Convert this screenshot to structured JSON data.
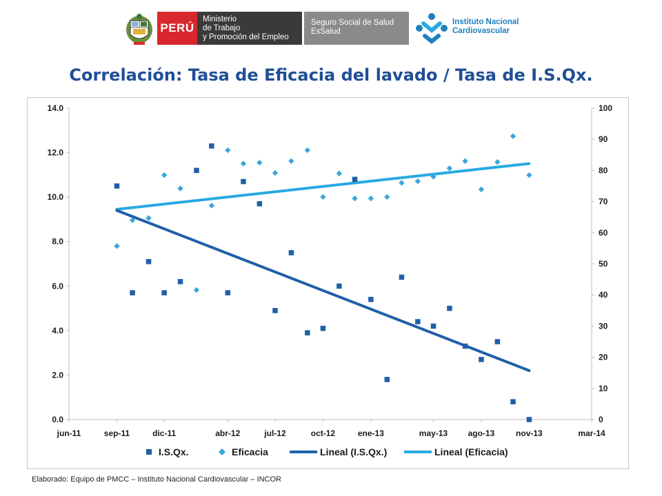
{
  "header": {
    "peru_label": "PERÚ",
    "mintra_lines": [
      "Ministerio",
      "de Trabajo",
      "y Promoción del Empleo"
    ],
    "essalud_lines": [
      "Seguro Social de Salud",
      "EsSalud"
    ],
    "incor_lines": [
      "Instituto Nacional",
      "Cardiovascular"
    ],
    "colors": {
      "peru_red": "#d9272e",
      "mintra_gray": "#3a3a3a",
      "essalud_gray": "#8a8a8a",
      "incor_blue": "#1f7fc0"
    }
  },
  "title": "Correlación: Tasa de Eficacia del lavado / Tasa de I.S.Qx.",
  "footer": "Elaborado: Equipo de PMCC – Instituto Nacional Cardiovascular – INCOR",
  "chart_data": {
    "type": "scatter",
    "x_ticks": [
      "jun-11",
      "sep-11",
      "dic-11",
      "abr-12",
      "jul-12",
      "oct-12",
      "ene-13",
      "may-13",
      "ago-13",
      "nov-13",
      "mar-14"
    ],
    "x_tick_dates": [
      "2011-06-01",
      "2011-09-01",
      "2011-12-01",
      "2012-04-01",
      "2012-07-01",
      "2012-10-01",
      "2013-01-01",
      "2013-05-01",
      "2013-08-01",
      "2013-11-01",
      "2014-03-01"
    ],
    "y_left": {
      "ticks": [
        "0.0",
        "2.0",
        "4.0",
        "6.0",
        "8.0",
        "10.0",
        "12.0",
        "14.0"
      ],
      "range": [
        0,
        14
      ]
    },
    "y_right": {
      "ticks": [
        "0",
        "10",
        "20",
        "30",
        "40",
        "50",
        "60",
        "70",
        "80",
        "90",
        "100"
      ],
      "range": [
        0,
        100
      ]
    },
    "grid": false,
    "legend_position": "bottom",
    "legend": [
      "I.S.Qx.",
      "Eficacia",
      "Lineal (I.S.Qx.)",
      "Lineal (Eficacia)"
    ],
    "colors": {
      "isqx": "#1f5fa8",
      "eficacia": "#3aa6dc",
      "trend_isqx": "#1f5fa8",
      "trend_eficacia": "#29aae1"
    },
    "series": [
      {
        "name": "I.S.Qx.",
        "axis": "left",
        "marker": "square",
        "x": [
          "2011-09-01",
          "2011-10-01",
          "2011-11-01",
          "2011-12-01",
          "2012-01-01",
          "2012-02-01",
          "2012-03-01",
          "2012-04-01",
          "2012-05-01",
          "2012-06-01",
          "2012-07-01",
          "2012-08-01",
          "2012-09-01",
          "2012-10-01",
          "2012-11-01",
          "2012-12-01",
          "2013-01-01",
          "2013-02-01",
          "2013-03-01",
          "2013-04-01",
          "2013-05-01",
          "2013-06-01",
          "2013-07-01",
          "2013-08-01",
          "2013-09-01",
          "2013-10-01",
          "2013-11-01"
        ],
        "y": [
          10.5,
          5.7,
          7.1,
          5.7,
          6.2,
          11.2,
          12.3,
          5.7,
          10.7,
          9.7,
          4.9,
          7.5,
          3.9,
          4.1,
          6.0,
          10.8,
          5.4,
          1.8,
          6.4,
          4.4,
          4.2,
          5.0,
          3.3,
          2.7,
          3.5,
          0.8,
          0.0
        ]
      },
      {
        "name": "Eficacia",
        "axis": "right",
        "marker": "diamond",
        "x": [
          "2011-09-01",
          "2011-10-01",
          "2011-11-01",
          "2011-12-01",
          "2012-01-01",
          "2012-02-01",
          "2012-03-01",
          "2012-04-01",
          "2012-05-01",
          "2012-06-01",
          "2012-07-01",
          "2012-08-01",
          "2012-09-01",
          "2012-10-01",
          "2012-11-01",
          "2012-12-01",
          "2013-01-01",
          "2013-02-01",
          "2013-03-01",
          "2013-04-01",
          "2013-05-01",
          "2013-06-01",
          "2013-07-01",
          "2013-08-01",
          "2013-09-01",
          "2013-10-01",
          "2013-11-01"
        ],
        "y": [
          55.7,
          64.0,
          64.7,
          78.5,
          74.2,
          41.6,
          68.7,
          86.5,
          82.2,
          82.5,
          79.2,
          83.0,
          86.5,
          71.5,
          79.0,
          71.0,
          71.0,
          71.5,
          76.0,
          76.5,
          78.0,
          80.7,
          83.0,
          73.9,
          82.7,
          91.0,
          78.5
        ]
      },
      {
        "name": "Lineal (I.S.Qx.)",
        "axis": "left",
        "type": "trend",
        "x": [
          "2011-09-01",
          "2013-11-01"
        ],
        "y": [
          9.4,
          2.2
        ]
      },
      {
        "name": "Lineal (Eficacia)",
        "axis": "right",
        "type": "trend",
        "x": [
          "2011-09-01",
          "2013-11-01"
        ],
        "y": [
          67.5,
          82.2
        ]
      }
    ]
  }
}
